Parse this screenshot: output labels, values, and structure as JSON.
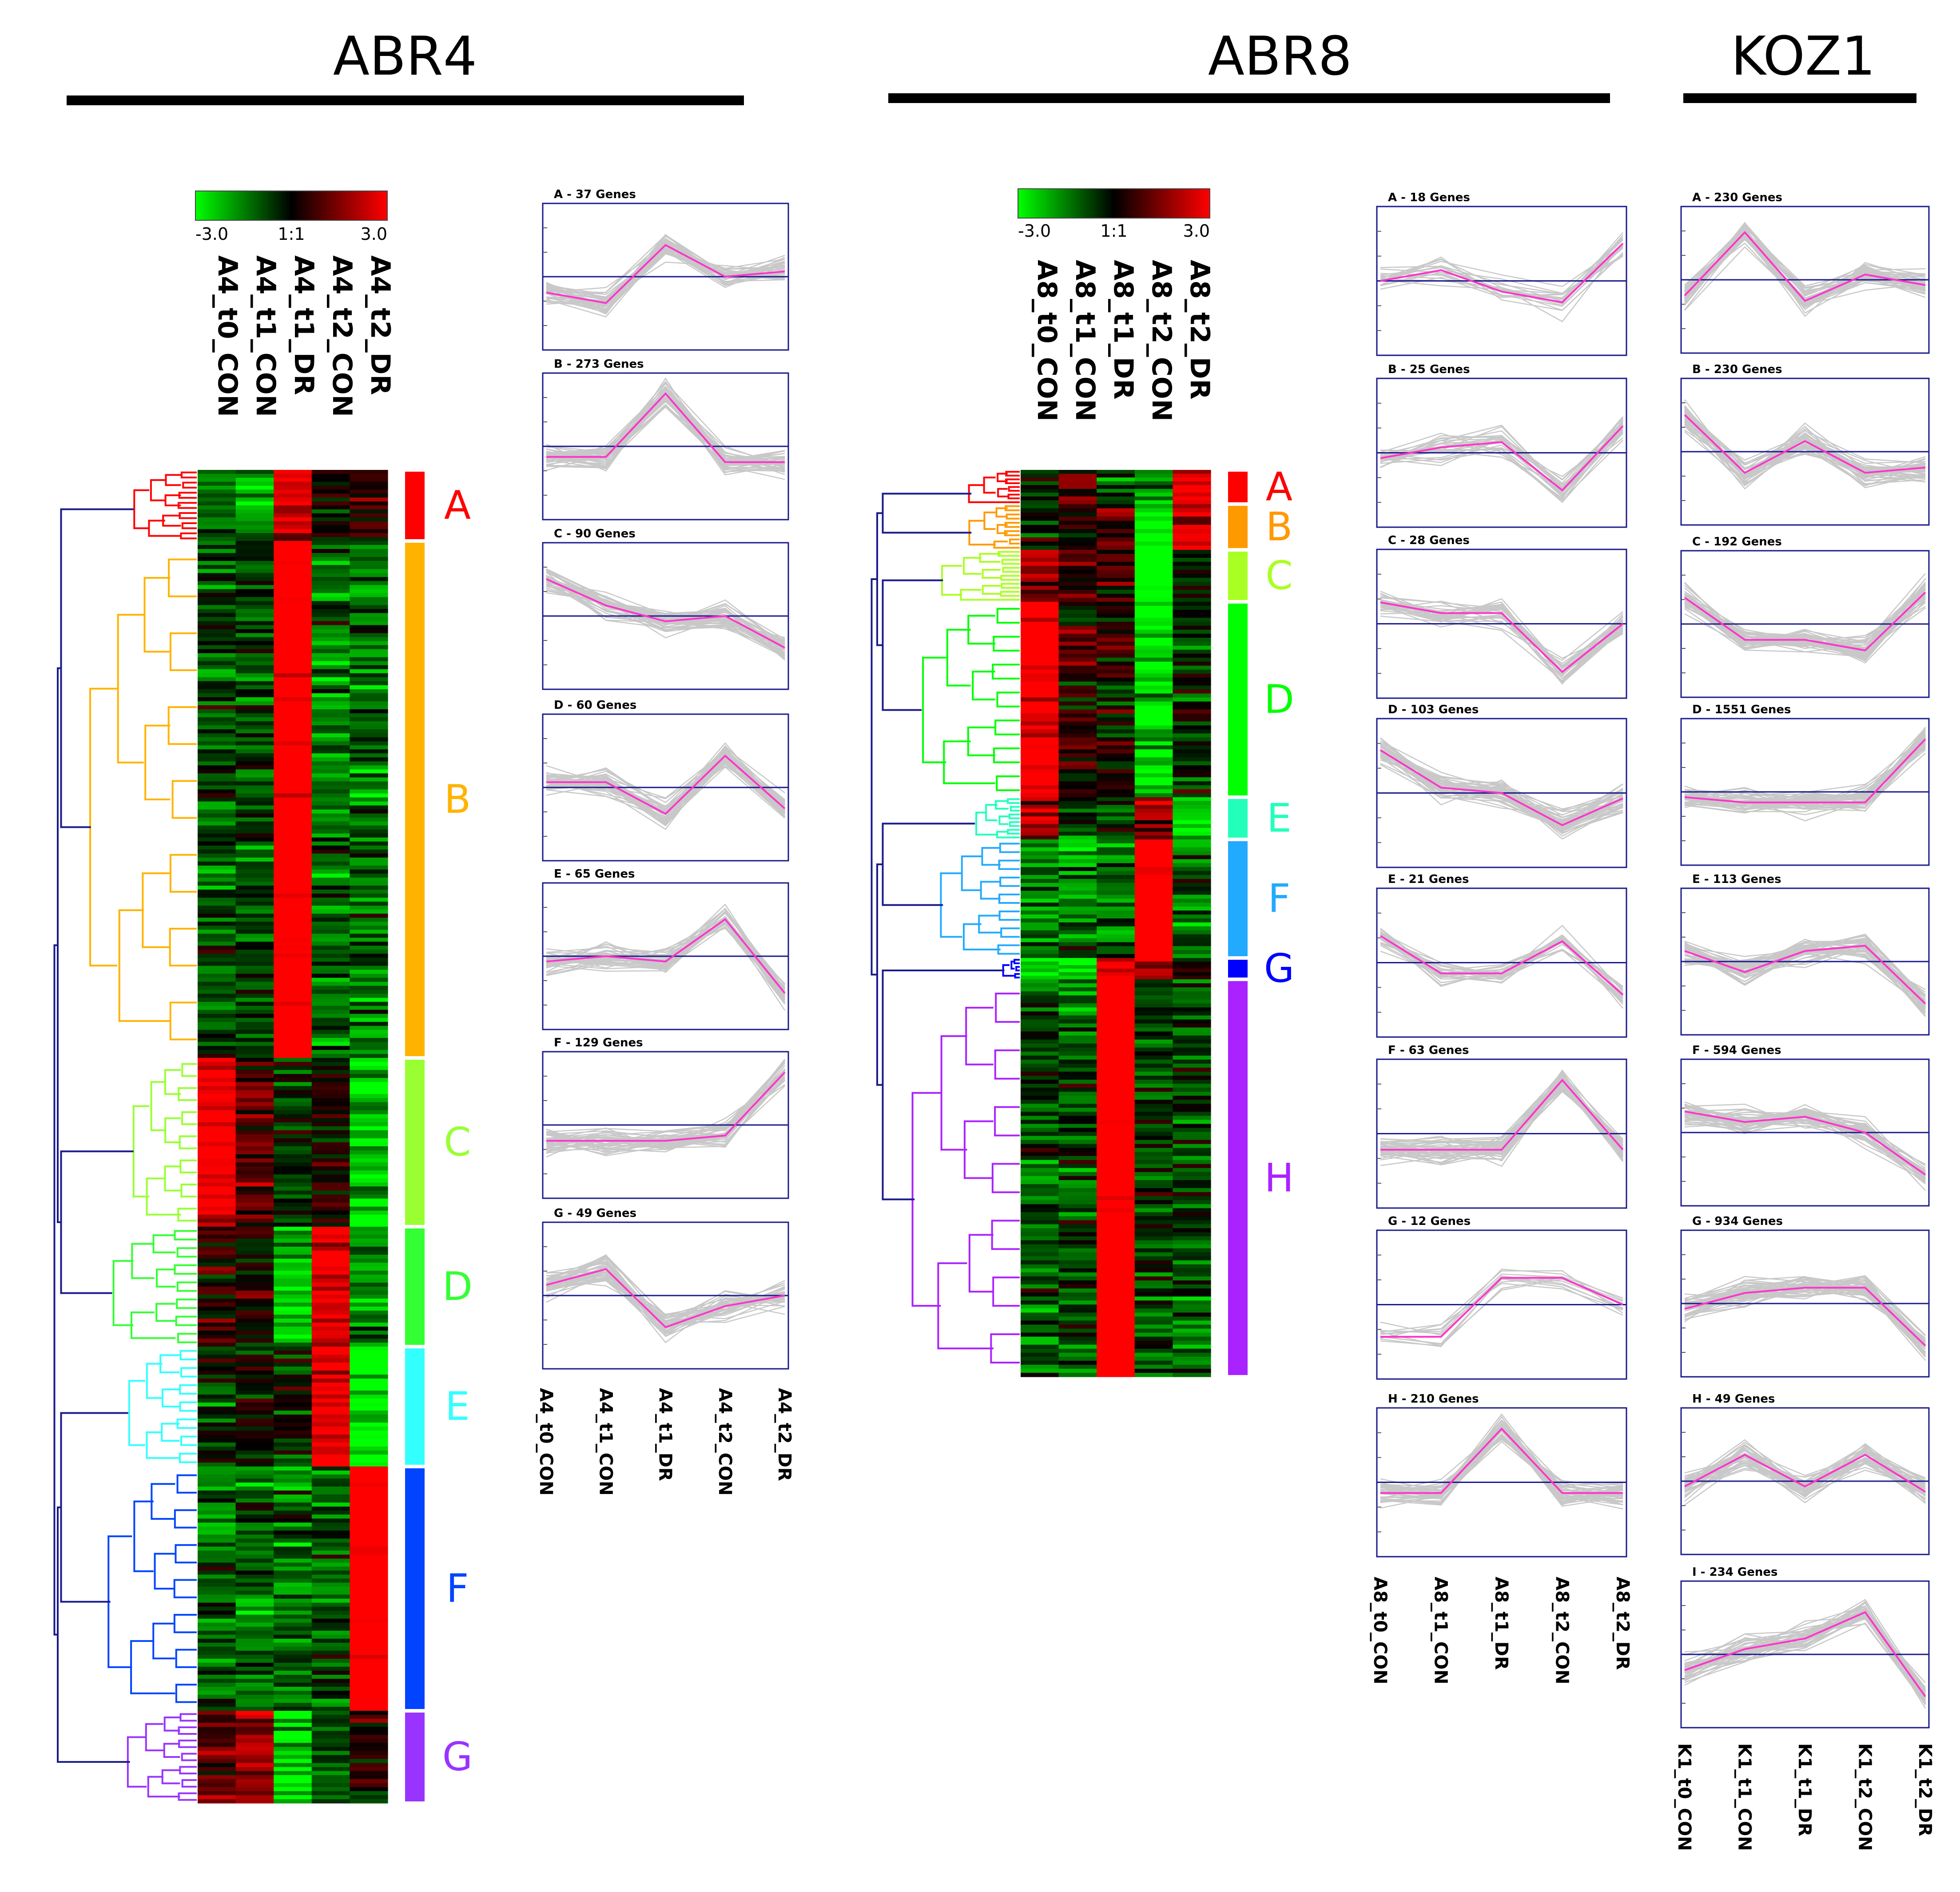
{
  "chart_data": {
    "type": "heatmap",
    "colors": {
      "low": "#00ff00",
      "mid": "#000000",
      "high": "#ff0000",
      "profile_line": "#ff33cc",
      "gene_lines": "#c8c8c8",
      "frame": "#1a1a8c"
    },
    "color_scale": {
      "min_label": "-3.0",
      "mid_label": "1:1",
      "max_label": "3.0",
      "min": -3.0,
      "max": 3.0
    },
    "panels": [
      {
        "title": "ABR4",
        "conditions": [
          "A4_t0_CON",
          "A4_t1_CON",
          "A4_t1_DR",
          "A4_t2_CON",
          "A4_t2_DR"
        ],
        "clusters": [
          {
            "label": "A",
            "title": "A - 37 Genes",
            "genes": 37,
            "color": "#ff0000",
            "profile": [
              -0.3,
              -0.5,
              0.6,
              0.0,
              0.1
            ]
          },
          {
            "label": "B",
            "title": "B - 273 Genes",
            "genes": 273,
            "color": "#ffb300",
            "profile": [
              -0.2,
              -0.2,
              1.0,
              -0.3,
              -0.3
            ]
          },
          {
            "label": "C",
            "title": "C - 90 Genes",
            "genes": 90,
            "color": "#99ff33",
            "profile": [
              0.7,
              0.2,
              -0.1,
              0.0,
              -0.6
            ]
          },
          {
            "label": "D",
            "title": "D - 60 Genes",
            "genes": 60,
            "color": "#33ff33",
            "profile": [
              0.1,
              0.1,
              -0.5,
              0.6,
              -0.4
            ]
          },
          {
            "label": "E",
            "title": "E - 65 Genes",
            "genes": 65,
            "color": "#33ffff",
            "profile": [
              -0.1,
              0.0,
              -0.1,
              0.7,
              -0.7
            ]
          },
          {
            "label": "F",
            "title": "F - 129 Genes",
            "genes": 129,
            "color": "#0044ff",
            "profile": [
              -0.3,
              -0.3,
              -0.3,
              -0.2,
              1.0
            ]
          },
          {
            "label": "G",
            "title": "G - 49 Genes",
            "genes": 49,
            "color": "#9933ff",
            "profile": [
              0.2,
              0.5,
              -0.6,
              -0.2,
              0.0
            ]
          }
        ]
      },
      {
        "title": "ABR8",
        "conditions": [
          "A8_t0_CON",
          "A8_t1_CON",
          "A8_t1_DR",
          "A8_t2_CON",
          "A8_t2_DR"
        ],
        "clusters": [
          {
            "label": "A",
            "title": "A - 18 Genes",
            "genes": 18,
            "color": "#ff0000",
            "profile": [
              0.0,
              0.2,
              -0.2,
              -0.4,
              0.7
            ]
          },
          {
            "label": "B",
            "title": "B - 25 Genes",
            "genes": 25,
            "color": "#ff9900",
            "profile": [
              -0.1,
              0.1,
              0.2,
              -0.7,
              0.5
            ]
          },
          {
            "label": "C",
            "title": "C - 28 Genes",
            "genes": 28,
            "color": "#aaff22",
            "profile": [
              0.4,
              0.2,
              0.2,
              -0.9,
              0.0
            ]
          },
          {
            "label": "D",
            "title": "D - 103 Genes",
            "genes": 103,
            "color": "#00ff00",
            "profile": [
              0.8,
              0.1,
              0.0,
              -0.6,
              -0.1
            ]
          },
          {
            "label": "E",
            "title": "E - 21 Genes",
            "genes": 21,
            "color": "#22ffbb",
            "profile": [
              0.5,
              -0.2,
              -0.2,
              0.4,
              -0.6
            ]
          },
          {
            "label": "F",
            "title": "F - 63 Genes",
            "genes": 63,
            "color": "#22aaff",
            "profile": [
              -0.3,
              -0.3,
              -0.3,
              1.0,
              -0.3
            ]
          },
          {
            "label": "G",
            "title": "G - 12 Genes",
            "genes": 12,
            "color": "#0000ff",
            "profile": [
              -0.6,
              -0.6,
              0.5,
              0.5,
              0.0
            ]
          },
          {
            "label": "H",
            "title": "H - 210 Genes",
            "genes": 210,
            "color": "#aa22ff",
            "profile": [
              -0.2,
              -0.2,
              1.0,
              -0.2,
              -0.2
            ]
          }
        ]
      },
      {
        "title": "KOZ1",
        "conditions": [
          "K1_t0_CON",
          "K1_t1_CON",
          "K1_t1_DR",
          "K1_t2_CON",
          "K1_t2_DR"
        ],
        "clusters": [
          {
            "label": "A",
            "title": "A - 230 Genes",
            "genes": 230,
            "color": "#808080",
            "profile": [
              -0.3,
              0.9,
              -0.4,
              0.1,
              -0.1
            ]
          },
          {
            "label": "B",
            "title": "B - 230 Genes",
            "genes": 230,
            "color": "#808080",
            "profile": [
              0.7,
              -0.4,
              0.2,
              -0.4,
              -0.3
            ]
          },
          {
            "label": "C",
            "title": "C - 192 Genes",
            "genes": 192,
            "color": "#808080",
            "profile": [
              0.5,
              -0.3,
              -0.3,
              -0.5,
              0.6
            ]
          },
          {
            "label": "D",
            "title": "D - 1551 Genes",
            "genes": 1551,
            "color": "#808080",
            "profile": [
              -0.1,
              -0.2,
              -0.2,
              -0.2,
              1.0
            ]
          },
          {
            "label": "E",
            "title": "E - 113 Genes",
            "genes": 113,
            "color": "#808080",
            "profile": [
              0.2,
              -0.2,
              0.2,
              0.3,
              -0.8
            ]
          },
          {
            "label": "F",
            "title": "F - 594 Genes",
            "genes": 594,
            "color": "#808080",
            "profile": [
              0.4,
              0.2,
              0.3,
              0.0,
              -0.8
            ]
          },
          {
            "label": "G",
            "title": "G - 934 Genes",
            "genes": 934,
            "color": "#808080",
            "profile": [
              -0.1,
              0.2,
              0.3,
              0.3,
              -0.8
            ]
          },
          {
            "label": "H",
            "title": "H - 49 Genes",
            "genes": 49,
            "color": "#808080",
            "profile": [
              -0.1,
              0.5,
              -0.1,
              0.5,
              -0.2
            ]
          },
          {
            "label": "I",
            "title": "I - 234 Genes",
            "genes": 234,
            "color": "#808080",
            "profile": [
              -0.3,
              0.1,
              0.3,
              0.8,
              -0.8
            ]
          }
        ]
      }
    ]
  }
}
